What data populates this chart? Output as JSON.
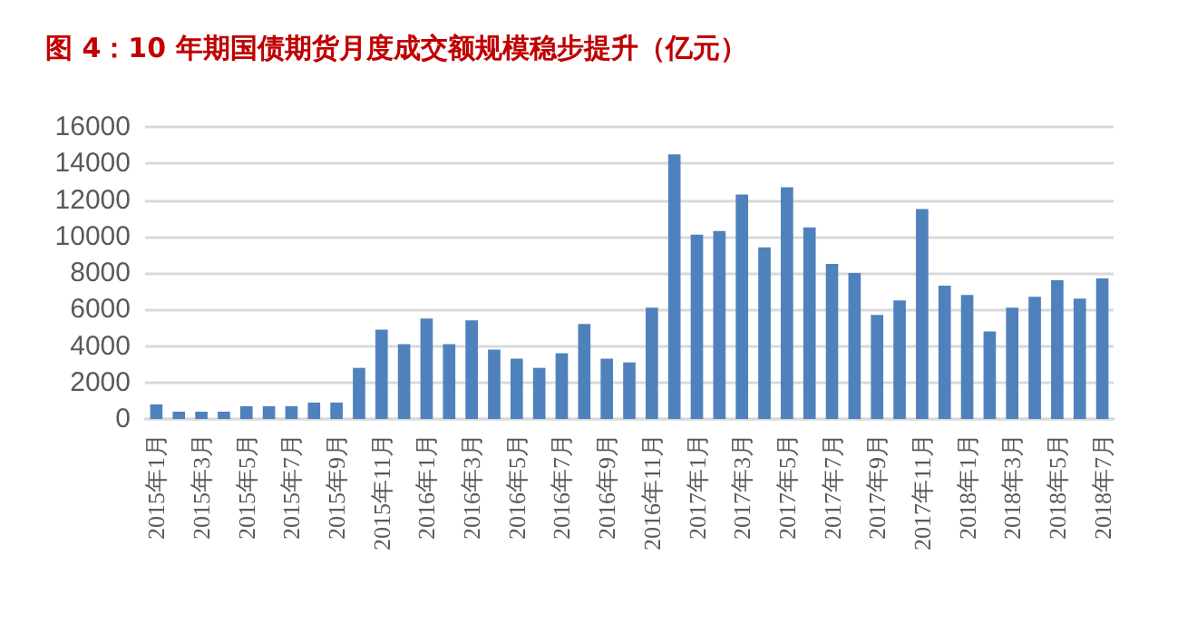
{
  "chart_data": {
    "type": "bar",
    "title": "图 4：10 年期国债期货月度成交额规模稳步提升（亿元）",
    "categories": [
      "2015年1月",
      null,
      "2015年3月",
      null,
      "2015年5月",
      null,
      "2015年7月",
      null,
      "2015年9月",
      null,
      "2015年11月",
      null,
      "2016年1月",
      null,
      "2016年3月",
      null,
      "2016年5月",
      null,
      "2016年7月",
      null,
      "2016年9月",
      null,
      "2016年11月",
      null,
      "2017年1月",
      null,
      "2017年3月",
      null,
      "2017年5月",
      null,
      "2017年7月",
      null,
      "2017年9月",
      null,
      "2017年11月",
      null,
      "2018年1月",
      null,
      "2018年3月",
      null,
      "2018年5月",
      null,
      "2018年7月"
    ],
    "values": [
      800,
      400,
      400,
      400,
      700,
      700,
      700,
      900,
      900,
      2800,
      4900,
      4100,
      5500,
      4100,
      5400,
      3800,
      3300,
      2800,
      3600,
      5200,
      3300,
      3100,
      6100,
      14500,
      10100,
      10300,
      12300,
      9400,
      12700,
      10500,
      8500,
      8000,
      5700,
      6500,
      11500,
      7300,
      6800,
      4800,
      6100,
      6700,
      7600,
      6600,
      7700
    ],
    "color": "#4f81bd",
    "ylim": [
      0,
      16000
    ],
    "yticks": [
      0,
      2000,
      4000,
      6000,
      8000,
      10000,
      12000,
      14000,
      16000
    ],
    "grid": "y"
  }
}
